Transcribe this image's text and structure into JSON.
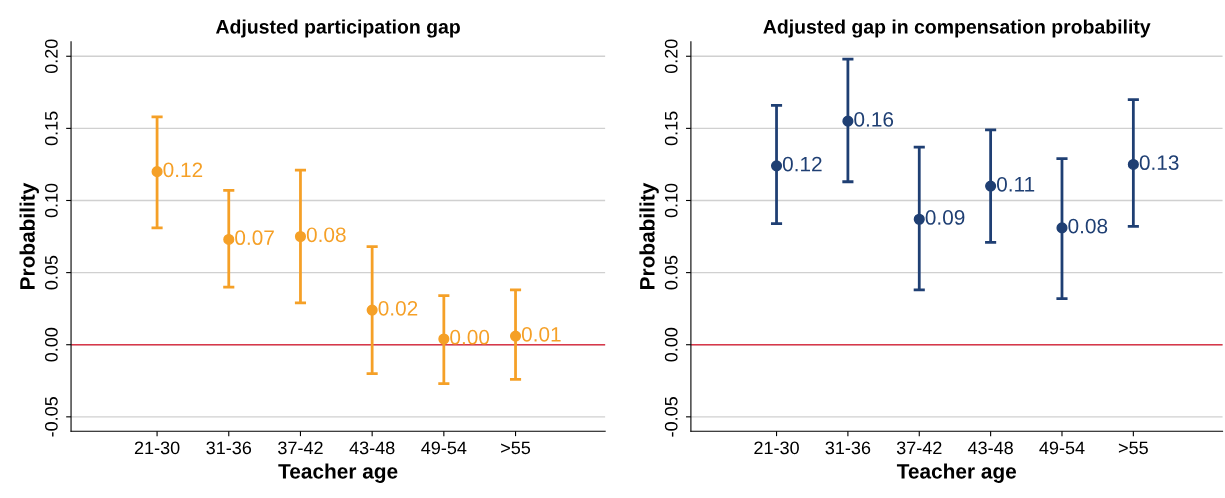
{
  "chart_data": [
    {
      "type": "scatter",
      "title": "Adjusted participation gap",
      "xlabel": "Teacher age",
      "ylabel": "Probability",
      "categories": [
        "21-30",
        "31-36",
        "37-42",
        "43-48",
        "49-54",
        ">55"
      ],
      "series": [
        {
          "color": "#f5a027",
          "values": [
            0.12,
            0.073,
            0.075,
            0.024,
            0.004,
            0.006
          ],
          "errors": [
            [
              0.081,
              0.158
            ],
            [
              0.04,
              0.107
            ],
            [
              0.029,
              0.121
            ],
            [
              -0.02,
              0.068
            ],
            [
              -0.027,
              0.034
            ],
            [
              -0.024,
              0.038
            ]
          ],
          "value_labels": [
            "0.12",
            "0.07",
            "0.08",
            "0.02",
            "0.00",
            "0.01"
          ]
        }
      ],
      "ylim": [
        -0.06,
        0.21
      ],
      "yticks": [
        {
          "value": -0.05,
          "label": "-0.05"
        },
        {
          "value": 0,
          "label": "0.00"
        },
        {
          "value": 0.05,
          "label": "0.05"
        },
        {
          "value": 0.1,
          "label": "0.10"
        },
        {
          "value": 0.15,
          "label": "0.15"
        },
        {
          "value": 0.2,
          "label": "0.20"
        }
      ],
      "ref_lines": [
        {
          "axis": "y",
          "value": 0,
          "color": "#d9384a"
        }
      ],
      "grid": "y",
      "marker": "circle",
      "legend": false
    },
    {
      "type": "scatter",
      "title": "Adjusted gap in compensation probability",
      "xlabel": "Teacher age",
      "ylabel": "Probability",
      "categories": [
        "21-30",
        "31-36",
        "37-42",
        "43-48",
        "49-54",
        ">55"
      ],
      "series": [
        {
          "color": "#1f3f73",
          "values": [
            0.124,
            0.155,
            0.087,
            0.11,
            0.081,
            0.125
          ],
          "errors": [
            [
              0.084,
              0.166
            ],
            [
              0.113,
              0.198
            ],
            [
              0.038,
              0.137
            ],
            [
              0.071,
              0.149
            ],
            [
              0.032,
              0.129
            ],
            [
              0.082,
              0.17
            ]
          ],
          "value_labels": [
            "0.12",
            "0.16",
            "0.09",
            "0.11",
            "0.08",
            "0.13"
          ]
        }
      ],
      "ylim": [
        -0.06,
        0.21
      ],
      "yticks": [
        {
          "value": -0.05,
          "label": "-0.05"
        },
        {
          "value": 0,
          "label": "0.00"
        },
        {
          "value": 0.05,
          "label": "0.05"
        },
        {
          "value": 0.1,
          "label": "0.10"
        },
        {
          "value": 0.15,
          "label": "0.15"
        },
        {
          "value": 0.2,
          "label": "0.20"
        }
      ],
      "ref_lines": [
        {
          "axis": "y",
          "value": 0,
          "color": "#d9384a"
        }
      ],
      "grid": "y",
      "marker": "circle",
      "legend": false
    }
  ]
}
